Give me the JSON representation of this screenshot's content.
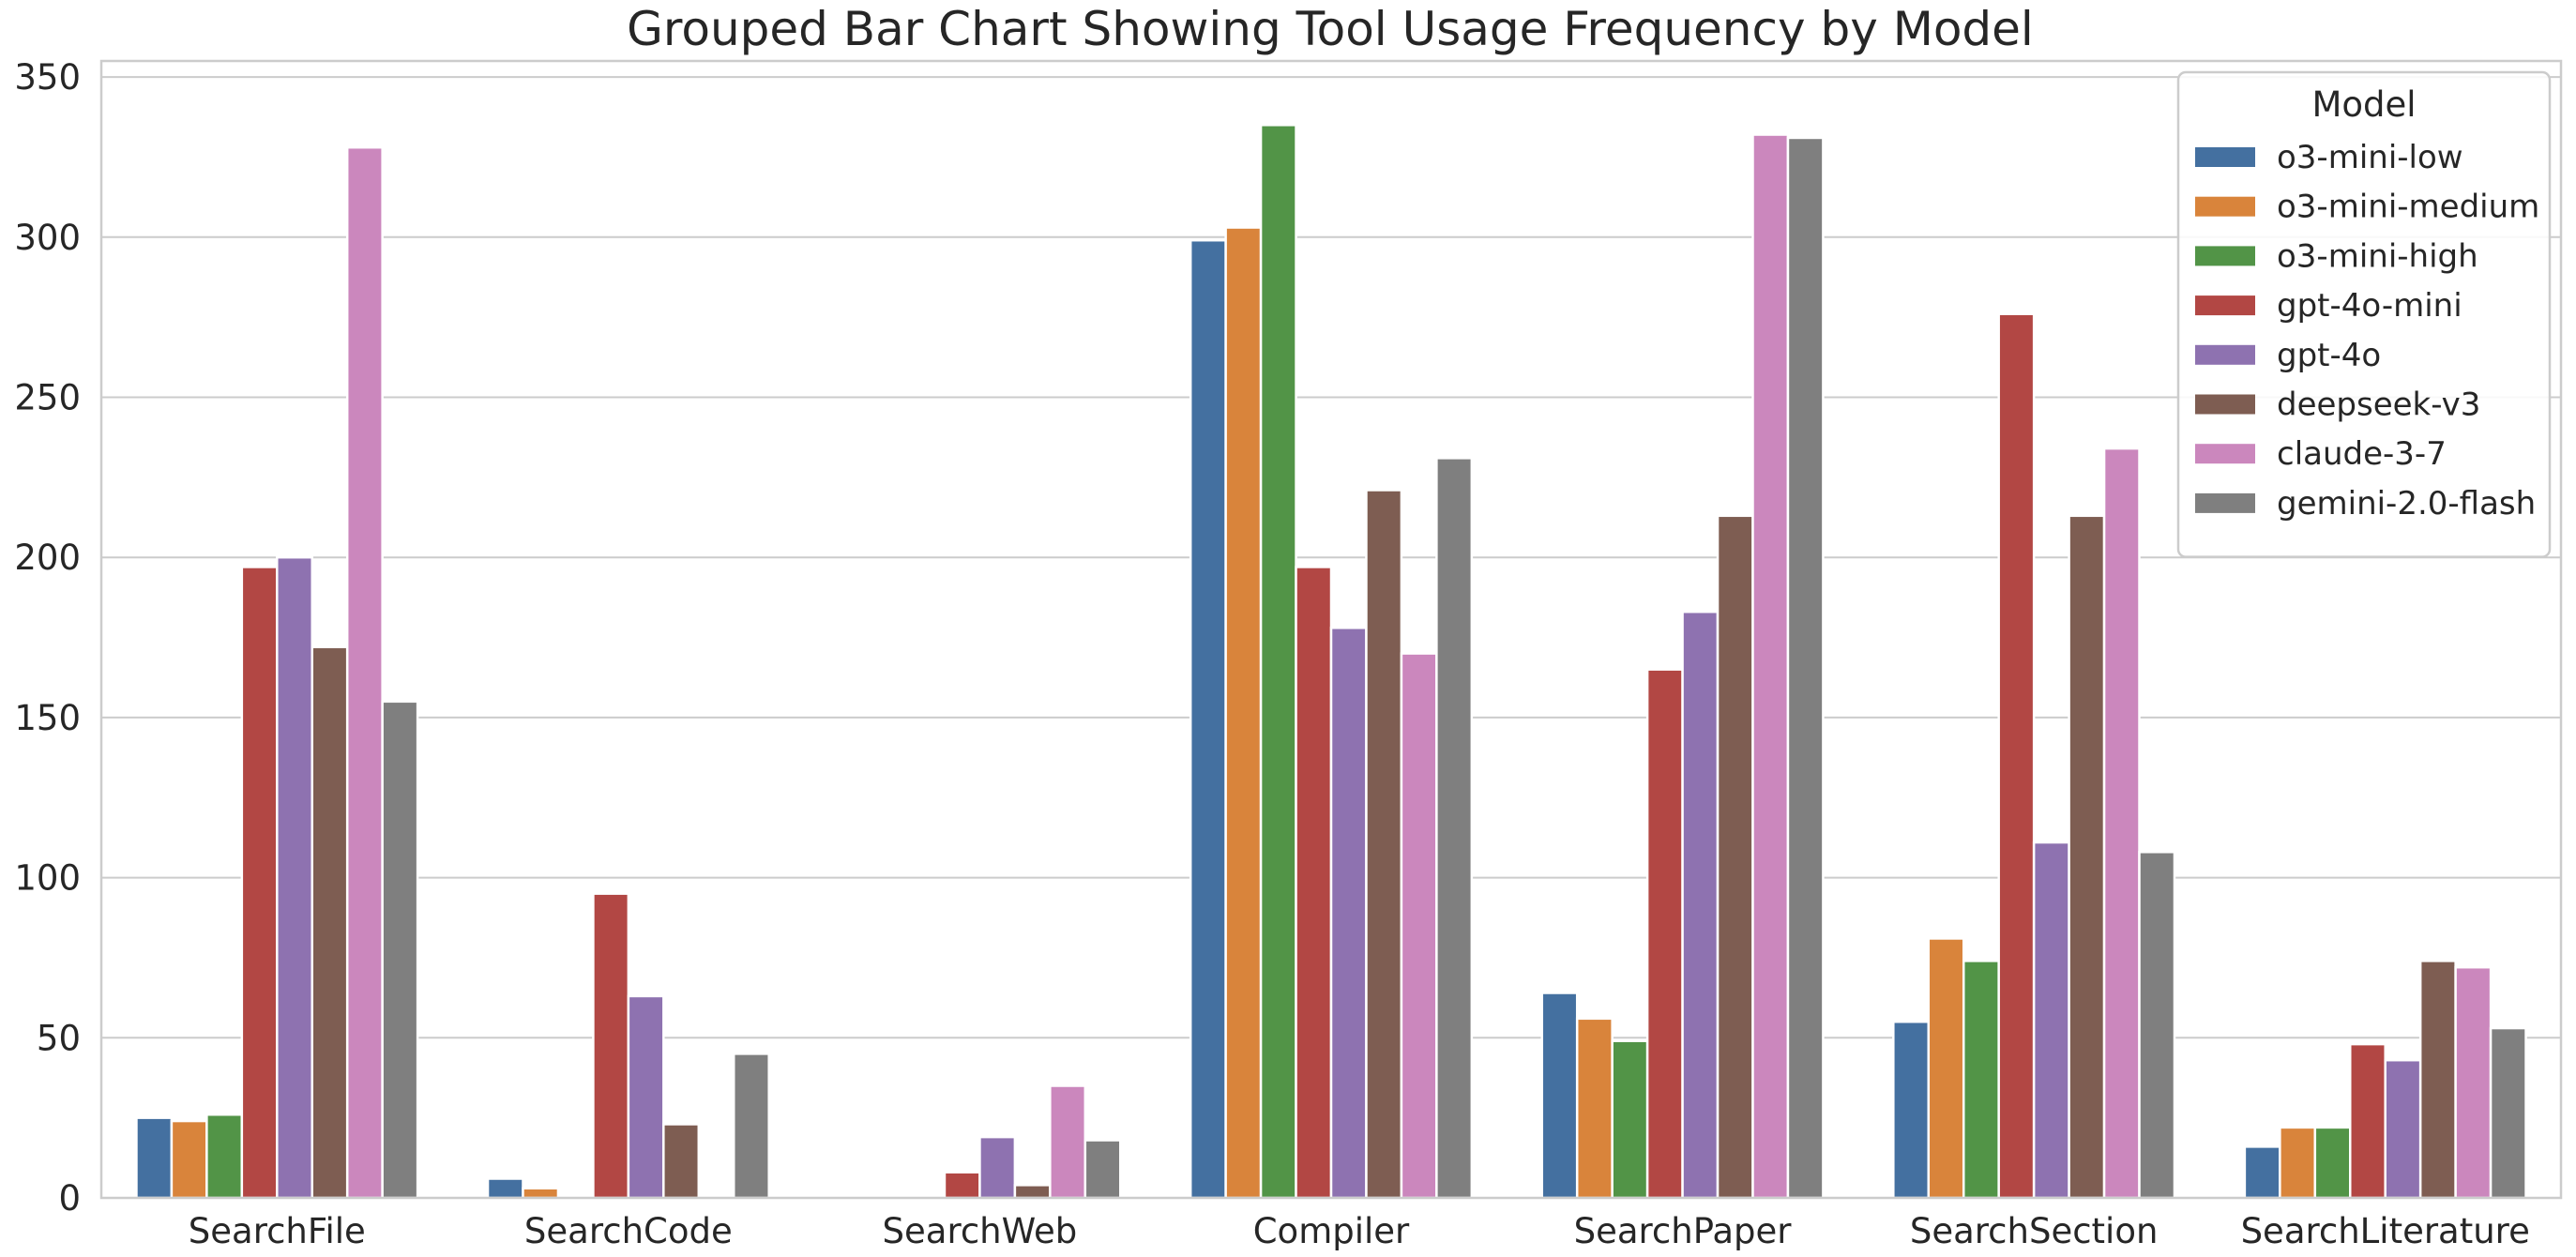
{
  "chart_data": {
    "type": "bar",
    "title": "Grouped Bar Chart Showing Tool Usage Frequency by Model",
    "xlabel": "",
    "ylabel": "",
    "ylim": [
      0,
      350
    ],
    "yticks": [
      0,
      50,
      100,
      150,
      200,
      250,
      300,
      350
    ],
    "grid": true,
    "legend": {
      "title": "Model",
      "placement": "top-right"
    },
    "categories": [
      "SearchFile",
      "SearchCode",
      "SearchWeb",
      "Compiler",
      "SearchPaper",
      "SearchSection",
      "SearchLiterature"
    ],
    "series": [
      {
        "name": "o3-mini-low",
        "color": "#4470a0",
        "values": [
          25,
          6,
          0,
          299,
          64,
          55,
          16
        ]
      },
      {
        "name": "o3-mini-medium",
        "color": "#d9843b",
        "values": [
          24,
          3,
          0,
          303,
          56,
          81,
          22
        ]
      },
      {
        "name": "o3-mini-high",
        "color": "#529447",
        "values": [
          26,
          0,
          0,
          335,
          49,
          74,
          22
        ]
      },
      {
        "name": "gpt-4o-mini",
        "color": "#b24744",
        "values": [
          197,
          95,
          8,
          197,
          165,
          276,
          48
        ]
      },
      {
        "name": "gpt-4o",
        "color": "#8e72b0",
        "values": [
          200,
          63,
          19,
          178,
          183,
          111,
          43
        ]
      },
      {
        "name": "deepseek-v3",
        "color": "#7e5d52",
        "values": [
          172,
          23,
          4,
          221,
          213,
          213,
          74
        ]
      },
      {
        "name": "claude-3-7",
        "color": "#cb87bd",
        "values": [
          328,
          0,
          35,
          170,
          332,
          234,
          72
        ]
      },
      {
        "name": "gemini-2.0-flash",
        "color": "#7f7f7f",
        "values": [
          155,
          45,
          18,
          231,
          331,
          108,
          53
        ]
      }
    ]
  }
}
